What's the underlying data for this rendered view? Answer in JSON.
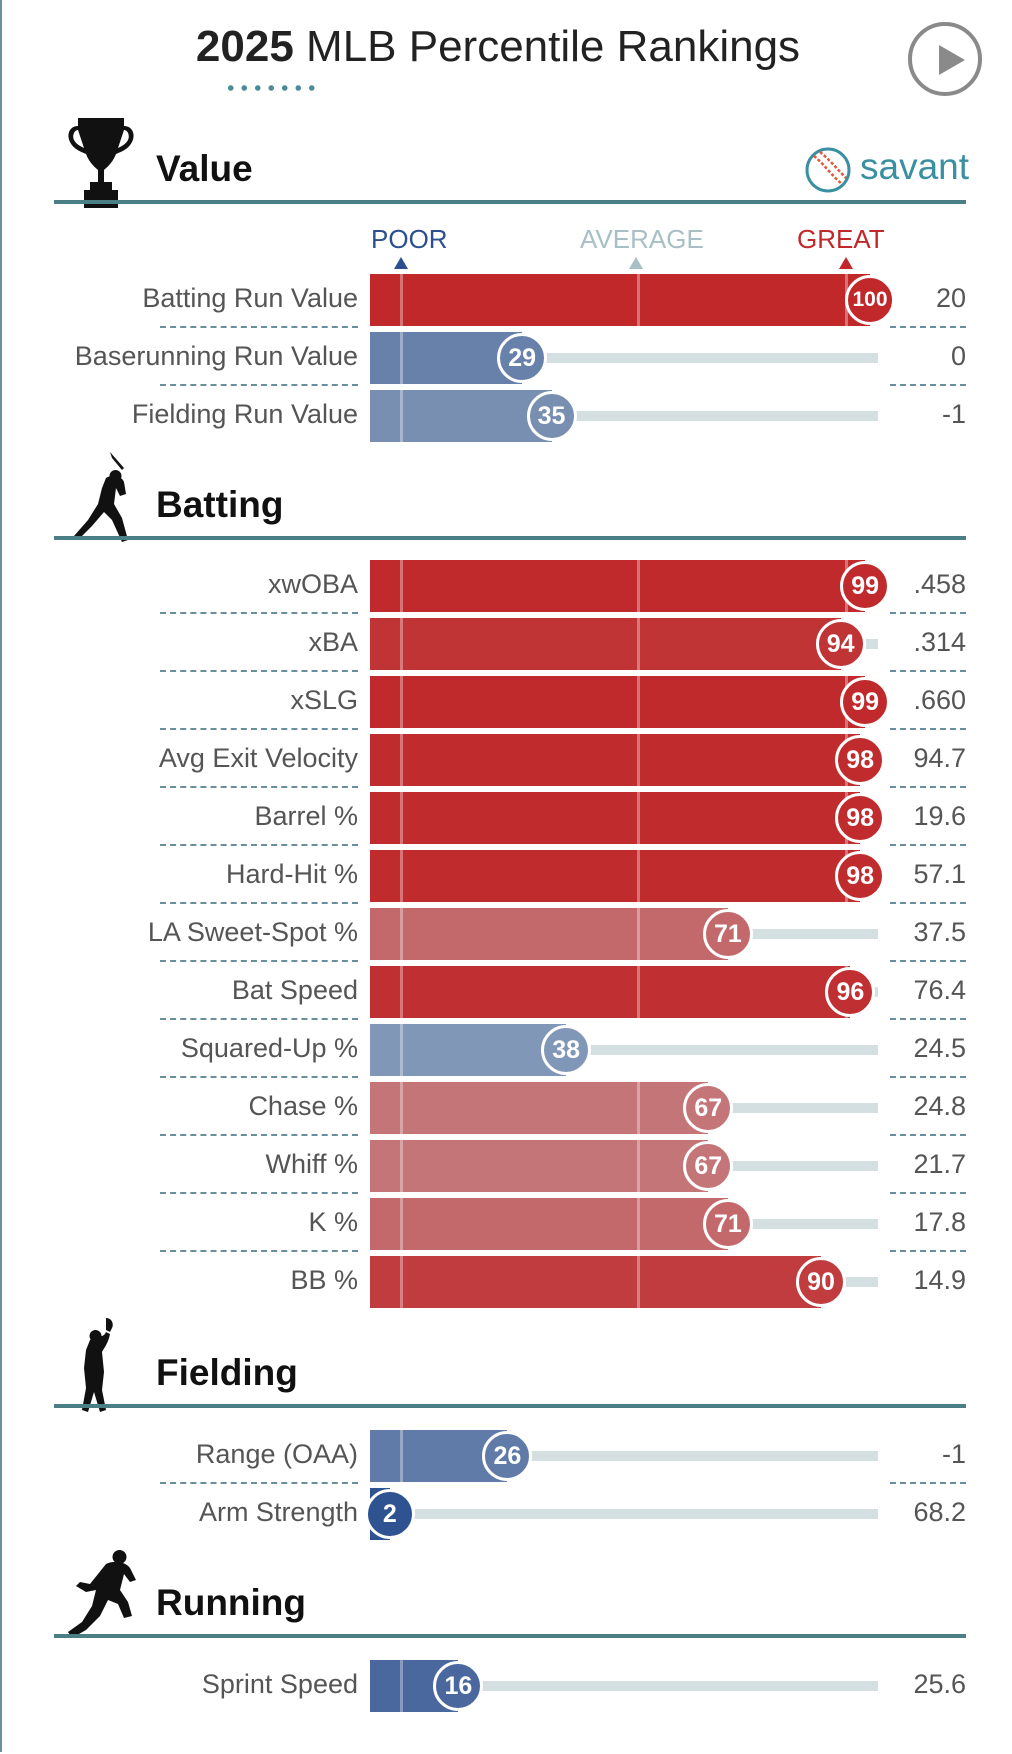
{
  "page": {
    "title_year": "2025",
    "title_rest": "MLB Percentile Rankings",
    "brand": "savant"
  },
  "scale": {
    "poor": "POOR",
    "average": "AVERAGE",
    "great": "GREAT",
    "poor_color": "#2c4f8f",
    "average_color": "#a8bfc6",
    "great_color": "#c0282a"
  },
  "chart_data": {
    "type": "bar",
    "title": "2025 MLB Percentile Rankings",
    "xlim": [
      0,
      100
    ],
    "sections": [
      {
        "name": "Value",
        "icon": "trophy-icon",
        "rows": [
          {
            "label": "Batting Run Value",
            "percentile": 100,
            "value": "20"
          },
          {
            "label": "Baserunning Run Value",
            "percentile": 29,
            "value": "0"
          },
          {
            "label": "Fielding Run Value",
            "percentile": 35,
            "value": "-1"
          }
        ]
      },
      {
        "name": "Batting",
        "icon": "batter-icon",
        "rows": [
          {
            "label": "xwOBA",
            "percentile": 99,
            "value": ".458"
          },
          {
            "label": "xBA",
            "percentile": 94,
            "value": ".314"
          },
          {
            "label": "xSLG",
            "percentile": 99,
            "value": ".660"
          },
          {
            "label": "Avg Exit Velocity",
            "percentile": 98,
            "value": "94.7"
          },
          {
            "label": "Barrel %",
            "percentile": 98,
            "value": "19.6"
          },
          {
            "label": "Hard-Hit %",
            "percentile": 98,
            "value": "57.1"
          },
          {
            "label": "LA Sweet-Spot %",
            "percentile": 71,
            "value": "37.5"
          },
          {
            "label": "Bat Speed",
            "percentile": 96,
            "value": "76.4"
          },
          {
            "label": "Squared-Up %",
            "percentile": 38,
            "value": "24.5"
          },
          {
            "label": "Chase %",
            "percentile": 67,
            "value": "24.8"
          },
          {
            "label": "Whiff %",
            "percentile": 67,
            "value": "21.7"
          },
          {
            "label": "K %",
            "percentile": 71,
            "value": "17.8"
          },
          {
            "label": "BB %",
            "percentile": 90,
            "value": "14.9"
          }
        ]
      },
      {
        "name": "Fielding",
        "icon": "fielder-icon",
        "rows": [
          {
            "label": "Range (OAA)",
            "percentile": 26,
            "value": "-1"
          },
          {
            "label": "Arm Strength",
            "percentile": 2,
            "value": "68.2"
          }
        ]
      },
      {
        "name": "Running",
        "icon": "runner-icon",
        "rows": [
          {
            "label": "Sprint Speed",
            "percentile": 16,
            "value": "25.6"
          }
        ]
      }
    ]
  }
}
